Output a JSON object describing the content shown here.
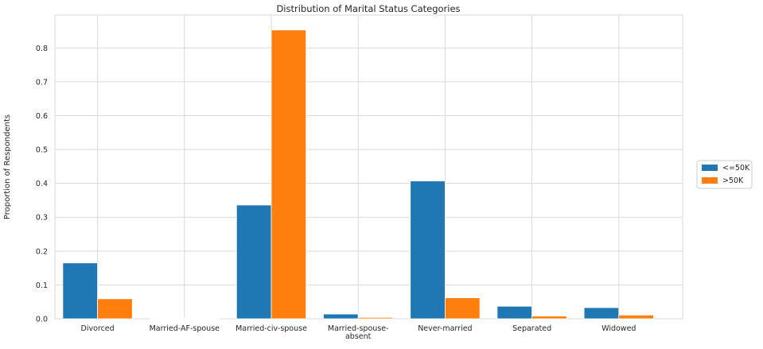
{
  "chart_data": {
    "type": "bar",
    "title": "Distribution of Marital Status Categories",
    "xlabel": "",
    "ylabel": "Proportion of Respondents",
    "categories": [
      "Divorced",
      "Married-AF-spouse",
      "Married-civ-spouse",
      "Married-spouse-absent",
      "Never-married",
      "Separated",
      "Widowed"
    ],
    "category_lines": [
      [
        "Divorced"
      ],
      [
        "Married-AF-spouse"
      ],
      [
        "Married-civ-spouse"
      ],
      [
        "Married-spouse-",
        "absent"
      ],
      [
        "Never-married"
      ],
      [
        "Separated"
      ],
      [
        "Widowed"
      ]
    ],
    "series": [
      {
        "name": "<=50K",
        "color": "#1f77b4",
        "values": [
          0.165,
          0.0005,
          0.336,
          0.014,
          0.407,
          0.037,
          0.033
        ]
      },
      {
        "name": ">50K",
        "color": "#ff7f0e",
        "values": [
          0.059,
          0.0015,
          0.853,
          0.004,
          0.062,
          0.008,
          0.011
        ]
      }
    ],
    "ylim": [
      0,
      0.897
    ],
    "yticks": [
      0.0,
      0.1,
      0.2,
      0.3,
      0.4,
      0.5,
      0.6,
      0.7,
      0.8
    ],
    "ytick_labels": [
      "0.0",
      "0.1",
      "0.2",
      "0.3",
      "0.4",
      "0.5",
      "0.6",
      "0.7",
      "0.8"
    ],
    "grid": true,
    "legend_position": "right"
  }
}
